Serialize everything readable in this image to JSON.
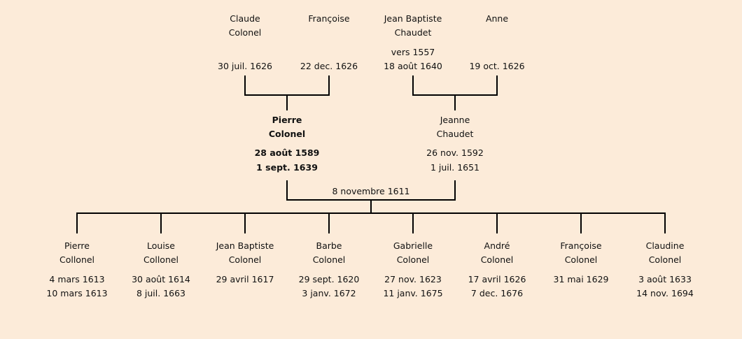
{
  "background": "#fcebd9",
  "grandparents": [
    {
      "name1": "Claude",
      "name2": "Colonel",
      "birth": "",
      "death": "30 juil. 1626"
    },
    {
      "name1": "Françoise",
      "name2": "",
      "birth": "",
      "death": "22 dec. 1626"
    },
    {
      "name1": "Jean Baptiste",
      "name2": "Chaudet",
      "birth": "vers 1557",
      "death": "18 août 1640"
    },
    {
      "name1": "Anne",
      "name2": "",
      "birth": "",
      "death": "19 oct. 1626"
    }
  ],
  "parents": [
    {
      "name1": "Pierre",
      "name2": "Colonel",
      "birth": "28 août 1589",
      "death": "1 sept. 1639",
      "highlighted": true
    },
    {
      "name1": "Jeanne",
      "name2": "Chaudet",
      "birth": "26 nov. 1592",
      "death": "1 juil. 1651",
      "highlighted": false
    }
  ],
  "marriage": "8 novembre 1611",
  "children": [
    {
      "name1": "Pierre",
      "name2": "Collonel",
      "birth": "4 mars 1613",
      "death": "10 mars 1613"
    },
    {
      "name1": "Louise",
      "name2": "Collonel",
      "birth": "30 août 1614",
      "death": "8 juil. 1663"
    },
    {
      "name1": "Jean Baptiste",
      "name2": "Colonel",
      "birth": "29 avril 1617",
      "death": ""
    },
    {
      "name1": "Barbe",
      "name2": "Colonel",
      "birth": "29 sept. 1620",
      "death": "3 janv. 1672"
    },
    {
      "name1": "Gabrielle",
      "name2": "Colonel",
      "birth": "27 nov. 1623",
      "death": "11 janv. 1675"
    },
    {
      "name1": "André",
      "name2": "Colonel",
      "birth": "17 avril 1626",
      "death": "7 dec. 1676"
    },
    {
      "name1": "Françoise",
      "name2": "Colonel",
      "birth": "31 mai 1629",
      "death": ""
    },
    {
      "name1": "Claudine",
      "name2": "Colonel",
      "birth": "3 août 1633",
      "death": "14 nov. 1694"
    }
  ]
}
